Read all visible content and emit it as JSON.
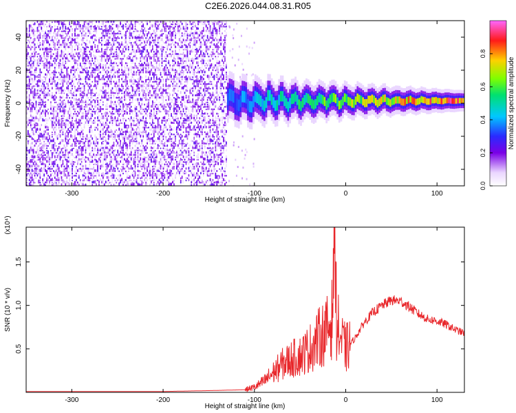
{
  "title": "C2E6.2026.044.08.31.R05",
  "chart_data": [
    {
      "type": "heatmap",
      "title": "C2E6.2026.044.08.31.R05",
      "xlabel": "Height of straight line (km)",
      "ylabel": "Frequency (Hz)",
      "xlim": [
        -350,
        130
      ],
      "ylim": [
        -50,
        50
      ],
      "xticks": [
        -300,
        -200,
        -100,
        0,
        100
      ],
      "yticks": [
        -40,
        -20,
        0,
        20,
        40
      ],
      "colorbar": {
        "label": "Normalized spectral amplitude",
        "range": [
          0,
          1
        ],
        "ticks": [
          "0.0",
          "0.2",
          "0.4",
          "0.6",
          "0.8"
        ]
      },
      "regions": [
        {
          "name": "noise",
          "x": [
            -350,
            -130
          ],
          "freq": [
            -50,
            50
          ],
          "level": 0.15
        },
        {
          "name": "signal band",
          "x": [
            -130,
            130
          ],
          "freq_center": 1.5,
          "level_start": 0.35,
          "level_end": 0.95
        }
      ]
    },
    {
      "type": "line",
      "xlabel": "Height of straight line (km)",
      "ylabel": "SNR (10 * v/v)",
      "y_multiplier": "(x10⁴)",
      "xlim": [
        -350,
        130
      ],
      "ylim": [
        0,
        1.9
      ],
      "xticks": [
        -300,
        -200,
        -100,
        0,
        100
      ],
      "yticks": [
        "0.5",
        "1.0",
        "1.5"
      ],
      "color": "#e8262a",
      "grid": false,
      "x": [
        -350,
        -300,
        -250,
        -200,
        -150,
        -110,
        -100,
        -90,
        -80,
        -70,
        -60,
        -50,
        -40,
        -30,
        -20,
        -15,
        -12,
        -10,
        -5,
        0,
        10,
        20,
        30,
        40,
        50,
        60,
        70,
        80,
        90,
        100,
        110,
        120,
        130
      ],
      "values": [
        0.01,
        0.01,
        0.01,
        0.01,
        0.02,
        0.03,
        0.06,
        0.12,
        0.22,
        0.32,
        0.38,
        0.42,
        0.5,
        0.62,
        0.72,
        0.85,
        1.9,
        0.8,
        0.6,
        0.5,
        0.62,
        0.8,
        0.92,
        1.0,
        1.06,
        1.05,
        0.98,
        0.9,
        0.84,
        0.82,
        0.78,
        0.72,
        0.68
      ]
    }
  ]
}
